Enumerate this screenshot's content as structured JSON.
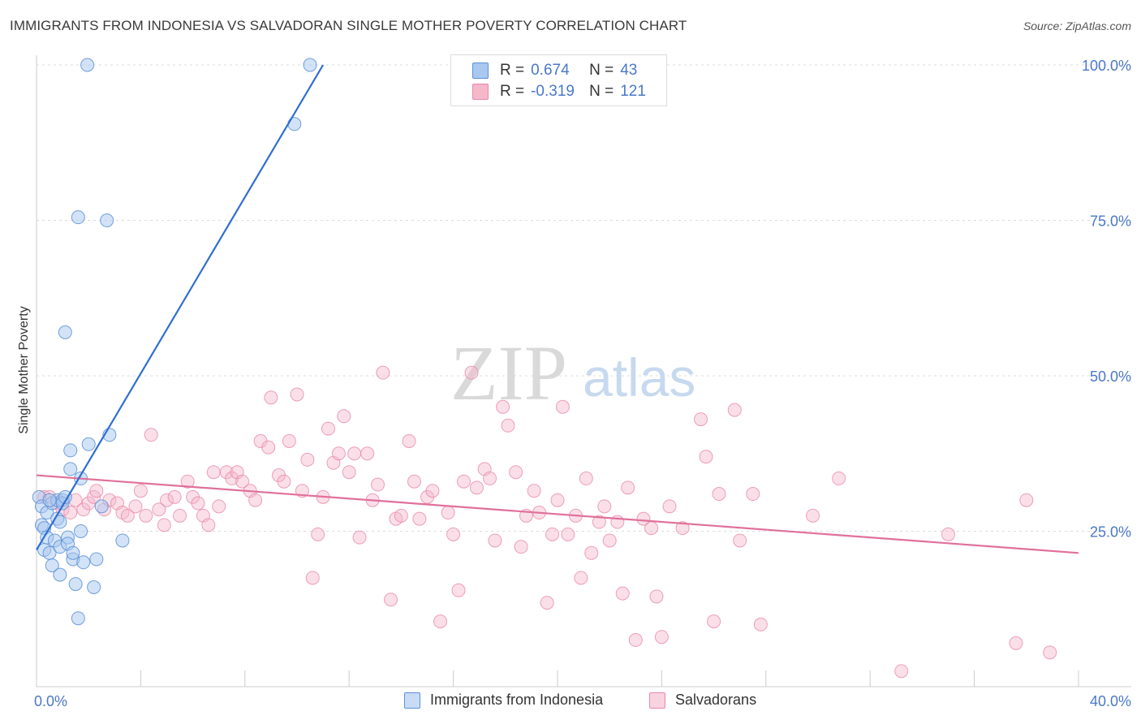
{
  "title": "IMMIGRANTS FROM INDONESIA VS SALVADORAN SINGLE MOTHER POVERTY CORRELATION CHART",
  "source": "Source: ZipAtlas.com",
  "watermark": {
    "zip": "ZIP",
    "atlas": "atlas"
  },
  "legend": {
    "series1": {
      "r_label": "R =",
      "r_value": "0.674",
      "n_label": "N =",
      "n_value": "43"
    },
    "series2": {
      "r_label": "R =",
      "r_value": "-0.319",
      "n_label": "N =",
      "n_value": "121"
    }
  },
  "colors": {
    "blue_fill": "#a8c8f0",
    "blue_stroke": "#5b8fd6",
    "blue_line": "#2f6fd0",
    "pink_fill": "#f5b8cb",
    "pink_stroke": "#e889a6",
    "pink_line": "#e0709a",
    "tick_text": "#4a78c8"
  },
  "chart_data": {
    "type": "scatter",
    "title": "IMMIGRANTS FROM INDONESIA VS SALVADORAN SINGLE MOTHER POVERTY CORRELATION CHART",
    "xlabel": "",
    "ylabel": "Single Mother Poverty",
    "xlim": [
      0,
      40
    ],
    "ylim": [
      0,
      105
    ],
    "x_tick_labels": [
      "0.0%",
      "40.0%"
    ],
    "y_ticks": [
      25,
      50,
      75,
      100
    ],
    "y_tick_labels": [
      "25.0%",
      "50.0%",
      "75.0%",
      "100.0%"
    ],
    "series": [
      {
        "name": "Immigrants from Indonesia",
        "r": 0.674,
        "n": 43,
        "trend": {
          "x": [
            0.0,
            11.0
          ],
          "y": [
            22.0,
            100.0
          ]
        },
        "points": [
          [
            0.1,
            30.5
          ],
          [
            0.2,
            29.0
          ],
          [
            0.2,
            26.0
          ],
          [
            0.3,
            22.0
          ],
          [
            0.3,
            25.5
          ],
          [
            0.4,
            24.0
          ],
          [
            0.4,
            28.0
          ],
          [
            0.5,
            21.5
          ],
          [
            0.6,
            19.5
          ],
          [
            0.6,
            29.5
          ],
          [
            0.7,
            23.5
          ],
          [
            0.8,
            27.0
          ],
          [
            0.8,
            30.0
          ],
          [
            0.9,
            22.5
          ],
          [
            0.9,
            26.5
          ],
          [
            0.9,
            18.0
          ],
          [
            1.0,
            30.0
          ],
          [
            1.0,
            29.5
          ],
          [
            1.1,
            30.5
          ],
          [
            1.1,
            57.0
          ],
          [
            1.2,
            24.0
          ],
          [
            1.2,
            23.0
          ],
          [
            1.3,
            38.0
          ],
          [
            1.3,
            35.0
          ],
          [
            1.4,
            20.5
          ],
          [
            1.4,
            21.5
          ],
          [
            1.5,
            16.5
          ],
          [
            1.6,
            11.0
          ],
          [
            1.6,
            75.5
          ],
          [
            1.7,
            25.0
          ],
          [
            1.7,
            33.5
          ],
          [
            1.8,
            20.0
          ],
          [
            2.0,
            39.0
          ],
          [
            2.2,
            16.0
          ],
          [
            2.3,
            20.5
          ],
          [
            2.5,
            29.0
          ],
          [
            2.7,
            75.0
          ],
          [
            2.8,
            40.5
          ],
          [
            3.3,
            23.5
          ],
          [
            1.95,
            100.0
          ],
          [
            10.5,
            100.0
          ],
          [
            9.9,
            90.5
          ],
          [
            0.5,
            30.0
          ]
        ]
      },
      {
        "name": "Salvadorans",
        "r": -0.319,
        "n": 121,
        "trend": {
          "x": [
            0.0,
            40.0
          ],
          "y": [
            34.0,
            21.5
          ]
        },
        "points": [
          [
            0.3,
            30.5
          ],
          [
            0.5,
            30.5
          ],
          [
            0.8,
            29.5
          ],
          [
            1.0,
            28.5
          ],
          [
            1.3,
            28.0
          ],
          [
            1.5,
            30.0
          ],
          [
            1.8,
            28.5
          ],
          [
            2.0,
            29.5
          ],
          [
            2.2,
            30.5
          ],
          [
            2.3,
            31.5
          ],
          [
            2.6,
            28.5
          ],
          [
            2.8,
            30.0
          ],
          [
            3.1,
            29.5
          ],
          [
            3.3,
            28.0
          ],
          [
            3.5,
            27.5
          ],
          [
            3.8,
            29.0
          ],
          [
            4.0,
            31.5
          ],
          [
            4.2,
            27.5
          ],
          [
            4.4,
            40.5
          ],
          [
            4.7,
            28.5
          ],
          [
            4.9,
            26.0
          ],
          [
            5.0,
            30.0
          ],
          [
            5.3,
            30.5
          ],
          [
            5.5,
            27.5
          ],
          [
            5.8,
            33.0
          ],
          [
            6.0,
            30.5
          ],
          [
            6.2,
            29.5
          ],
          [
            6.4,
            27.5
          ],
          [
            6.6,
            26.0
          ],
          [
            6.8,
            34.5
          ],
          [
            7.0,
            29.0
          ],
          [
            7.3,
            34.5
          ],
          [
            7.5,
            33.5
          ],
          [
            7.7,
            34.5
          ],
          [
            7.9,
            33.0
          ],
          [
            8.2,
            31.5
          ],
          [
            8.4,
            30.0
          ],
          [
            8.6,
            39.5
          ],
          [
            8.9,
            38.5
          ],
          [
            9.0,
            46.5
          ],
          [
            9.3,
            34.0
          ],
          [
            9.5,
            33.0
          ],
          [
            9.7,
            39.5
          ],
          [
            10.0,
            47.0
          ],
          [
            10.2,
            31.5
          ],
          [
            10.4,
            36.5
          ],
          [
            10.6,
            17.5
          ],
          [
            10.8,
            24.5
          ],
          [
            11.0,
            30.5
          ],
          [
            11.2,
            41.5
          ],
          [
            11.4,
            36.0
          ],
          [
            11.6,
            37.5
          ],
          [
            11.8,
            43.5
          ],
          [
            12.0,
            34.5
          ],
          [
            12.2,
            37.5
          ],
          [
            12.4,
            24.0
          ],
          [
            12.7,
            37.5
          ],
          [
            12.9,
            30.0
          ],
          [
            13.1,
            32.5
          ],
          [
            13.3,
            50.5
          ],
          [
            13.6,
            14.0
          ],
          [
            13.8,
            27.0
          ],
          [
            14.0,
            27.5
          ],
          [
            14.3,
            39.5
          ],
          [
            14.5,
            33.0
          ],
          [
            14.7,
            27.0
          ],
          [
            15.0,
            30.5
          ],
          [
            15.2,
            31.5
          ],
          [
            15.5,
            10.5
          ],
          [
            15.8,
            28.0
          ],
          [
            16.0,
            24.5
          ],
          [
            16.2,
            15.5
          ],
          [
            16.4,
            33.0
          ],
          [
            16.7,
            50.5
          ],
          [
            16.9,
            32.0
          ],
          [
            17.2,
            35.0
          ],
          [
            17.4,
            33.5
          ],
          [
            17.6,
            23.5
          ],
          [
            17.9,
            45.0
          ],
          [
            18.1,
            42.0
          ],
          [
            18.4,
            34.5
          ],
          [
            18.6,
            22.5
          ],
          [
            18.8,
            27.5
          ],
          [
            19.1,
            31.5
          ],
          [
            19.3,
            28.0
          ],
          [
            19.6,
            13.5
          ],
          [
            19.8,
            24.5
          ],
          [
            20.0,
            30.0
          ],
          [
            20.2,
            45.0
          ],
          [
            20.4,
            24.5
          ],
          [
            20.7,
            27.5
          ],
          [
            20.9,
            17.5
          ],
          [
            21.1,
            33.5
          ],
          [
            21.3,
            21.5
          ],
          [
            21.6,
            26.5
          ],
          [
            21.8,
            29.0
          ],
          [
            22.0,
            23.5
          ],
          [
            22.3,
            26.5
          ],
          [
            22.5,
            15.0
          ],
          [
            22.7,
            32.0
          ],
          [
            23.0,
            7.5
          ],
          [
            23.3,
            27.0
          ],
          [
            23.6,
            25.5
          ],
          [
            23.8,
            14.5
          ],
          [
            24.0,
            8.0
          ],
          [
            24.3,
            29.0
          ],
          [
            24.8,
            25.5
          ],
          [
            25.5,
            43.0
          ],
          [
            25.7,
            37.0
          ],
          [
            26.0,
            10.5
          ],
          [
            26.2,
            31.0
          ],
          [
            26.8,
            44.5
          ],
          [
            27.0,
            23.5
          ],
          [
            27.5,
            31.0
          ],
          [
            27.8,
            10.0
          ],
          [
            29.8,
            27.5
          ],
          [
            30.8,
            33.5
          ],
          [
            33.2,
            2.5
          ],
          [
            35.0,
            24.5
          ],
          [
            37.6,
            7.0
          ],
          [
            38.0,
            30.0
          ],
          [
            38.9,
            5.5
          ]
        ]
      }
    ]
  },
  "bottom_legend": {
    "item1": "Immigrants from Indonesia",
    "item2": "Salvadorans"
  }
}
